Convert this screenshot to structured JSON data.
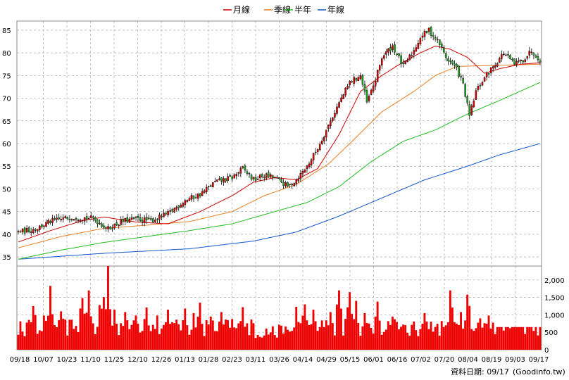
{
  "chart_data": {
    "type": "candlestick",
    "legend": [
      {
        "name": "月線",
        "color": "#cc0000"
      },
      {
        "name": "季線",
        "color": "#e67e22"
      },
      {
        "name": "半年",
        "color": "#22bb22"
      },
      {
        "name": "年線",
        "color": "#1155cc"
      }
    ],
    "price_axis": {
      "ylim": [
        33,
        87
      ],
      "ticks": [
        35,
        40,
        45,
        50,
        55,
        60,
        65,
        70,
        75,
        80,
        85
      ]
    },
    "volume_axis": {
      "ylim": [
        0,
        2400
      ],
      "ticks": [
        0,
        500,
        1000,
        1500,
        2000
      ],
      "tick_labels": [
        "0",
        "500",
        "1,000",
        "1,500",
        "2,000"
      ]
    },
    "x_labels": [
      "09/18",
      "10/07",
      "10/23",
      "11/10",
      "11/25",
      "12/10",
      "12/26",
      "01/13",
      "01/28",
      "02/23",
      "03/11",
      "03/26",
      "04/14",
      "04/29",
      "05/15",
      "06/01",
      "06/16",
      "07/02",
      "07/20",
      "08/04",
      "08/19",
      "09/03",
      "09/17"
    ],
    "trading_days": 245,
    "price_path": [
      [
        0,
        40.5
      ],
      [
        8,
        41.2
      ],
      [
        15,
        42.8
      ],
      [
        25,
        43.8
      ],
      [
        35,
        43.5
      ],
      [
        42,
        41.2
      ],
      [
        48,
        42.8
      ],
      [
        55,
        43.4
      ],
      [
        62,
        43.0
      ],
      [
        70,
        44.5
      ],
      [
        78,
        47.5
      ],
      [
        85,
        48.8
      ],
      [
        92,
        51.5
      ],
      [
        100,
        52.5
      ],
      [
        105,
        54.5
      ],
      [
        110,
        52.0
      ],
      [
        115,
        53.0
      ],
      [
        120,
        52.5
      ],
      [
        126,
        50.5
      ],
      [
        130,
        52.0
      ],
      [
        135,
        55.0
      ],
      [
        140,
        59.0
      ],
      [
        145,
        64.0
      ],
      [
        150,
        69.0
      ],
      [
        155,
        73.5
      ],
      [
        160,
        75.0
      ],
      [
        163,
        69.0
      ],
      [
        167,
        74.0
      ],
      [
        170,
        79.0
      ],
      [
        175,
        81.5
      ],
      [
        180,
        77.0
      ],
      [
        185,
        80.5
      ],
      [
        188,
        83.5
      ],
      [
        192,
        85.0
      ],
      [
        197,
        82.0
      ],
      [
        200,
        79.0
      ],
      [
        205,
        76.5
      ],
      [
        208,
        73.0
      ],
      [
        211,
        66.0
      ],
      [
        214,
        71.5
      ],
      [
        218,
        74.5
      ],
      [
        222,
        77.0
      ],
      [
        227,
        80.0
      ],
      [
        232,
        77.5
      ],
      [
        236,
        78.5
      ],
      [
        240,
        80.5
      ],
      [
        244,
        78.5
      ]
    ],
    "ma_month": [
      [
        0,
        38.3
      ],
      [
        15,
        40.8
      ],
      [
        30,
        43.0
      ],
      [
        40,
        43.8
      ],
      [
        55,
        42.7
      ],
      [
        70,
        42.3
      ],
      [
        85,
        45.0
      ],
      [
        100,
        48.5
      ],
      [
        110,
        51.5
      ],
      [
        120,
        52.5
      ],
      [
        130,
        52.0
      ],
      [
        140,
        54.5
      ],
      [
        150,
        62.0
      ],
      [
        160,
        71.5
      ],
      [
        170,
        75.0
      ],
      [
        180,
        78.0
      ],
      [
        188,
        80.0
      ],
      [
        195,
        81.5
      ],
      [
        202,
        80.8
      ],
      [
        210,
        79.0
      ],
      [
        218,
        75.5
      ],
      [
        225,
        76.5
      ],
      [
        235,
        77.5
      ],
      [
        244,
        77.8
      ]
    ],
    "ma_quarter": [
      [
        0,
        37.0
      ],
      [
        20,
        39.5
      ],
      [
        40,
        41.3
      ],
      [
        60,
        42.0
      ],
      [
        80,
        42.8
      ],
      [
        100,
        45.0
      ],
      [
        115,
        48.5
      ],
      [
        130,
        51.0
      ],
      [
        145,
        55.5
      ],
      [
        155,
        60.0
      ],
      [
        170,
        67.0
      ],
      [
        185,
        71.5
      ],
      [
        195,
        75.0
      ],
      [
        205,
        77.0
      ],
      [
        220,
        77.2
      ],
      [
        244,
        77.5
      ]
    ],
    "ma_half": [
      [
        0,
        34.5
      ],
      [
        20,
        36.5
      ],
      [
        40,
        38.2
      ],
      [
        60,
        39.5
      ],
      [
        80,
        40.8
      ],
      [
        100,
        42.3
      ],
      [
        120,
        45.0
      ],
      [
        135,
        47.0
      ],
      [
        150,
        50.5
      ],
      [
        165,
        56.0
      ],
      [
        180,
        60.5
      ],
      [
        195,
        63.0
      ],
      [
        210,
        66.5
      ],
      [
        225,
        69.5
      ],
      [
        244,
        73.5
      ]
    ],
    "ma_year": [
      [
        0,
        34.5
      ],
      [
        40,
        35.8
      ],
      [
        80,
        36.8
      ],
      [
        110,
        38.5
      ],
      [
        130,
        40.5
      ],
      [
        150,
        44.0
      ],
      [
        170,
        48.0
      ],
      [
        190,
        52.0
      ],
      [
        210,
        55.0
      ],
      [
        225,
        57.5
      ],
      [
        244,
        60.0
      ]
    ],
    "volume_spikes": [
      [
        2,
        520
      ],
      [
        5,
        820
      ],
      [
        7,
        1250
      ],
      [
        12,
        980
      ],
      [
        15,
        1830
      ],
      [
        20,
        1100
      ],
      [
        25,
        860
      ],
      [
        30,
        1480
      ],
      [
        33,
        1700
      ],
      [
        38,
        1280
      ],
      [
        40,
        1510
      ],
      [
        42,
        2400
      ],
      [
        45,
        1150
      ],
      [
        50,
        1080
      ],
      [
        55,
        980
      ],
      [
        60,
        1210
      ],
      [
        65,
        980
      ],
      [
        70,
        1150
      ],
      [
        78,
        1180
      ],
      [
        82,
        1050
      ],
      [
        85,
        1350
      ],
      [
        90,
        950
      ],
      [
        95,
        1080
      ],
      [
        100,
        880
      ],
      [
        105,
        1220
      ],
      [
        110,
        760
      ],
      [
        118,
        620
      ],
      [
        125,
        810
      ],
      [
        130,
        1230
      ],
      [
        134,
        1300
      ],
      [
        138,
        1150
      ],
      [
        142,
        840
      ],
      [
        146,
        1080
      ],
      [
        150,
        1700
      ],
      [
        155,
        1650
      ],
      [
        158,
        1400
      ],
      [
        162,
        1050
      ],
      [
        168,
        1380
      ],
      [
        175,
        950
      ],
      [
        180,
        720
      ],
      [
        185,
        810
      ],
      [
        190,
        1050
      ],
      [
        195,
        650
      ],
      [
        200,
        700
      ],
      [
        202,
        1700
      ],
      [
        207,
        1080
      ],
      [
        210,
        1580
      ],
      [
        216,
        900
      ],
      [
        220,
        980
      ],
      [
        225,
        700
      ],
      [
        231,
        1020
      ],
      [
        235,
        820
      ],
      [
        240,
        600
      ],
      [
        244,
        650
      ]
    ],
    "footer_date": "資料日期: 09/17",
    "footer_source": "(Goodinfo.tw)"
  }
}
